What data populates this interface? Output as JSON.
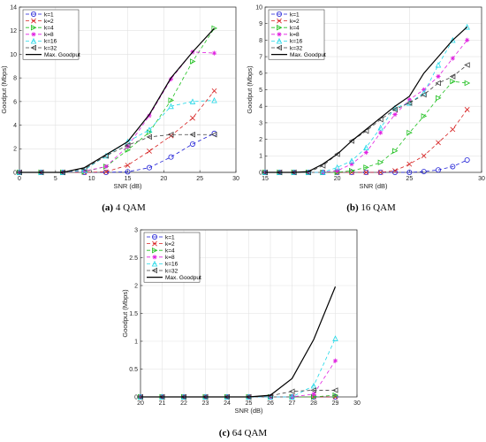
{
  "chart_data": [
    {
      "type": "line",
      "caption_letter": "(a)",
      "caption_text": "4 QAM",
      "xlabel": "SNR (dB)",
      "ylabel": "Goodput (Mbps)",
      "xlim": [
        0,
        30
      ],
      "ylim": [
        0,
        14
      ],
      "xticks": [
        0,
        5,
        10,
        15,
        20,
        25,
        30
      ],
      "yticks": [
        0,
        2,
        4,
        6,
        8,
        10,
        12,
        14
      ],
      "grid": true,
      "legend_position": "top-left",
      "x": [
        0,
        3,
        6,
        9,
        12,
        15,
        18,
        21,
        24,
        27
      ],
      "series": [
        {
          "name": "k=1",
          "color": "#1f1fd6",
          "dash": "4,3",
          "marker": "circle",
          "values": [
            0,
            0,
            0,
            0,
            0,
            0.05,
            0.4,
            1.3,
            2.4,
            3.3
          ]
        },
        {
          "name": "k=2",
          "color": "#d62020",
          "dash": "4,3",
          "marker": "x",
          "values": [
            0,
            0,
            0,
            0,
            0.05,
            0.6,
            1.8,
            3.1,
            4.6,
            6.9
          ]
        },
        {
          "name": "k=4",
          "color": "#20c020",
          "dash": "4,3",
          "marker": "triangle-right",
          "values": [
            0,
            0,
            0,
            0.05,
            0.5,
            1.9,
            3.4,
            6.1,
            9.4,
            12.2
          ]
        },
        {
          "name": "k=8",
          "color": "#e020e0",
          "dash": "4,3",
          "marker": "star",
          "values": [
            0,
            0,
            0,
            0.1,
            0.5,
            2.2,
            4.8,
            7.9,
            10.2,
            10.1
          ]
        },
        {
          "name": "k=16",
          "color": "#20d8e8",
          "dash": "4,3",
          "marker": "triangle-up",
          "values": [
            0,
            0,
            0,
            0.2,
            1.4,
            2.6,
            3.6,
            5.6,
            6.0,
            6.1
          ]
        },
        {
          "name": "k=32",
          "color": "#404040",
          "dash": "4,3",
          "marker": "triangle-left",
          "values": [
            0,
            0,
            0,
            0.3,
            1.4,
            2.3,
            3.0,
            3.2,
            3.2,
            3.2
          ]
        },
        {
          "name": "Max. Goodput",
          "color": "#000000",
          "dash": "",
          "marker": "none",
          "values": [
            0,
            0,
            0,
            0.4,
            1.5,
            2.6,
            4.9,
            8.0,
            10.2,
            12.2
          ]
        }
      ]
    },
    {
      "type": "line",
      "caption_letter": "(b)",
      "caption_text": "16 QAM",
      "xlabel": "SNR (dB)",
      "ylabel": "Goodput (Mbps)",
      "xlim": [
        15,
        30
      ],
      "ylim": [
        0,
        10
      ],
      "xticks": [
        15,
        20,
        25,
        30
      ],
      "yticks": [
        0,
        1,
        2,
        3,
        4,
        5,
        6,
        7,
        8,
        9,
        10
      ],
      "grid": true,
      "legend_position": "top-left",
      "x": [
        15,
        16,
        17,
        18,
        19,
        20,
        21,
        22,
        23,
        24,
        25,
        26,
        27,
        28,
        29
      ],
      "series": [
        {
          "name": "k=1",
          "color": "#1f1fd6",
          "dash": "4,3",
          "marker": "circle",
          "values": [
            0,
            0,
            0,
            0,
            0,
            0,
            0,
            0,
            0,
            0,
            0,
            0.05,
            0.15,
            0.35,
            0.75
          ]
        },
        {
          "name": "k=2",
          "color": "#d62020",
          "dash": "4,3",
          "marker": "x",
          "values": [
            0,
            0,
            0,
            0,
            0,
            0,
            0,
            0,
            0,
            0.1,
            0.5,
            1.0,
            1.8,
            2.6,
            3.8
          ]
        },
        {
          "name": "k=4",
          "color": "#20c020",
          "dash": "4,3",
          "marker": "triangle-right",
          "values": [
            0,
            0,
            0,
            0,
            0,
            0,
            0.1,
            0.3,
            0.6,
            1.3,
            2.4,
            3.4,
            4.5,
            5.5,
            5.4
          ]
        },
        {
          "name": "k=8",
          "color": "#e020e0",
          "dash": "4,3",
          "marker": "star",
          "values": [
            0,
            0,
            0,
            0,
            0,
            0.1,
            0.5,
            1.2,
            2.4,
            3.5,
            4.4,
            5.0,
            5.8,
            6.9,
            8.0
          ]
        },
        {
          "name": "k=16",
          "color": "#20d8e8",
          "dash": "4,3",
          "marker": "triangle-up",
          "values": [
            0,
            0,
            0,
            0,
            0,
            0.3,
            0.7,
            1.5,
            2.7,
            3.9,
            4.2,
            4.8,
            6.5,
            8.0,
            8.8
          ]
        },
        {
          "name": "k=32",
          "color": "#404040",
          "dash": "4,3",
          "marker": "triangle-left",
          "values": [
            0,
            0,
            0,
            0,
            0.4,
            1.1,
            1.9,
            2.5,
            3.2,
            3.8,
            4.2,
            4.7,
            5.4,
            5.8,
            6.5
          ]
        },
        {
          "name": "Max. Goodput",
          "color": "#000000",
          "dash": "",
          "marker": "none",
          "values": [
            0,
            0,
            0,
            0.05,
            0.5,
            1.1,
            1.9,
            2.6,
            3.3,
            4.0,
            4.6,
            6.0,
            7.0,
            8.0,
            8.8
          ]
        }
      ]
    },
    {
      "type": "line",
      "caption_letter": "(c)",
      "caption_text": "64 QAM",
      "xlabel": "SNR (dB)",
      "ylabel": "Goodput (Mbps)",
      "xlim": [
        20,
        30
      ],
      "ylim": [
        0,
        3
      ],
      "xticks": [
        20,
        21,
        22,
        23,
        24,
        25,
        26,
        27,
        28,
        29,
        30
      ],
      "yticks": [
        0,
        0.5,
        1,
        1.5,
        2,
        2.5,
        3
      ],
      "grid": true,
      "legend_position": "top-left",
      "x": [
        20,
        21,
        22,
        23,
        24,
        25,
        26,
        27,
        28,
        29
      ],
      "series": [
        {
          "name": "k=1",
          "color": "#1f1fd6",
          "dash": "4,3",
          "marker": "circle",
          "values": [
            0,
            0,
            0,
            0,
            0,
            0,
            0,
            0,
            0,
            0
          ]
        },
        {
          "name": "k=2",
          "color": "#d62020",
          "dash": "4,3",
          "marker": "x",
          "values": [
            0,
            0,
            0,
            0,
            0,
            0,
            0,
            0,
            0,
            0
          ]
        },
        {
          "name": "k=4",
          "color": "#20c020",
          "dash": "4,3",
          "marker": "triangle-right",
          "values": [
            0,
            0,
            0,
            0,
            0,
            0,
            0,
            0,
            0,
            0.03
          ]
        },
        {
          "name": "k=8",
          "color": "#e020e0",
          "dash": "4,3",
          "marker": "star",
          "values": [
            0,
            0,
            0,
            0,
            0,
            0,
            0,
            0,
            0.05,
            0.65
          ]
        },
        {
          "name": "k=16",
          "color": "#20d8e8",
          "dash": "4,3",
          "marker": "triangle-up",
          "values": [
            0,
            0,
            0,
            0,
            0,
            0,
            0,
            0,
            0.2,
            1.05
          ]
        },
        {
          "name": "k=32",
          "color": "#404040",
          "dash": "4,3",
          "marker": "triangle-left",
          "values": [
            0,
            0,
            0,
            0,
            0,
            0,
            0.02,
            0.1,
            0.12,
            0.12
          ]
        },
        {
          "name": "Max. Goodput",
          "color": "#000000",
          "dash": "",
          "marker": "none",
          "values": [
            0,
            0,
            0,
            0,
            0,
            0,
            0.03,
            0.33,
            1.03,
            1.98
          ]
        }
      ]
    }
  ]
}
